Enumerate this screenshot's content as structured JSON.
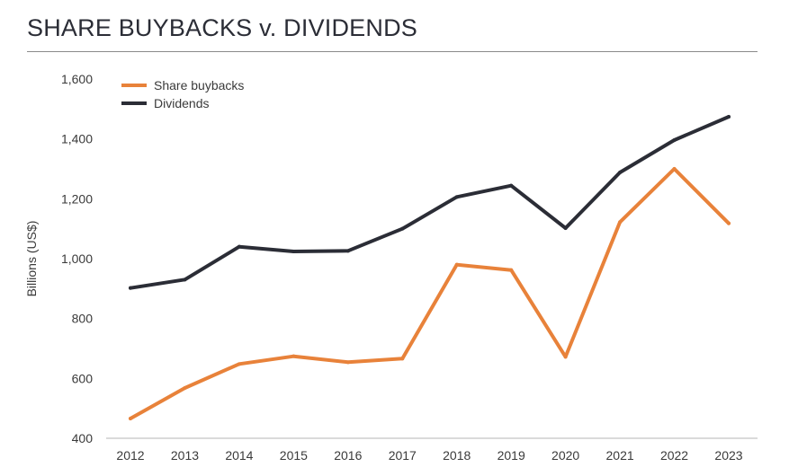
{
  "chart_data": {
    "type": "line",
    "title": "SHARE BUYBACKS v. DIVIDENDS",
    "xlabel": "",
    "ylabel": "Billions (US$)",
    "ylim": [
      400,
      1600
    ],
    "yticks": [
      "400",
      "600",
      "800",
      "1,000",
      "1,200",
      "1,400",
      "1,600"
    ],
    "ytick_values": [
      400,
      600,
      800,
      1000,
      1200,
      1400,
      1600
    ],
    "categories": [
      "2012",
      "2013",
      "2014",
      "2015",
      "2016",
      "2017",
      "2018",
      "2019",
      "2020",
      "2021",
      "2022",
      "2023"
    ],
    "legend_position": "top-left",
    "grid": false,
    "series": [
      {
        "name": "Share buybacks",
        "color": "#e8823a",
        "values": [
          466,
          568,
          648,
          674,
          654,
          666,
          980,
          962,
          672,
          1122,
          1300,
          1118
        ]
      },
      {
        "name": "Dividends",
        "color": "#2b2d36",
        "values": [
          902,
          930,
          1040,
          1024,
          1026,
          1100,
          1206,
          1244,
          1102,
          1288,
          1396,
          1474
        ]
      }
    ]
  }
}
